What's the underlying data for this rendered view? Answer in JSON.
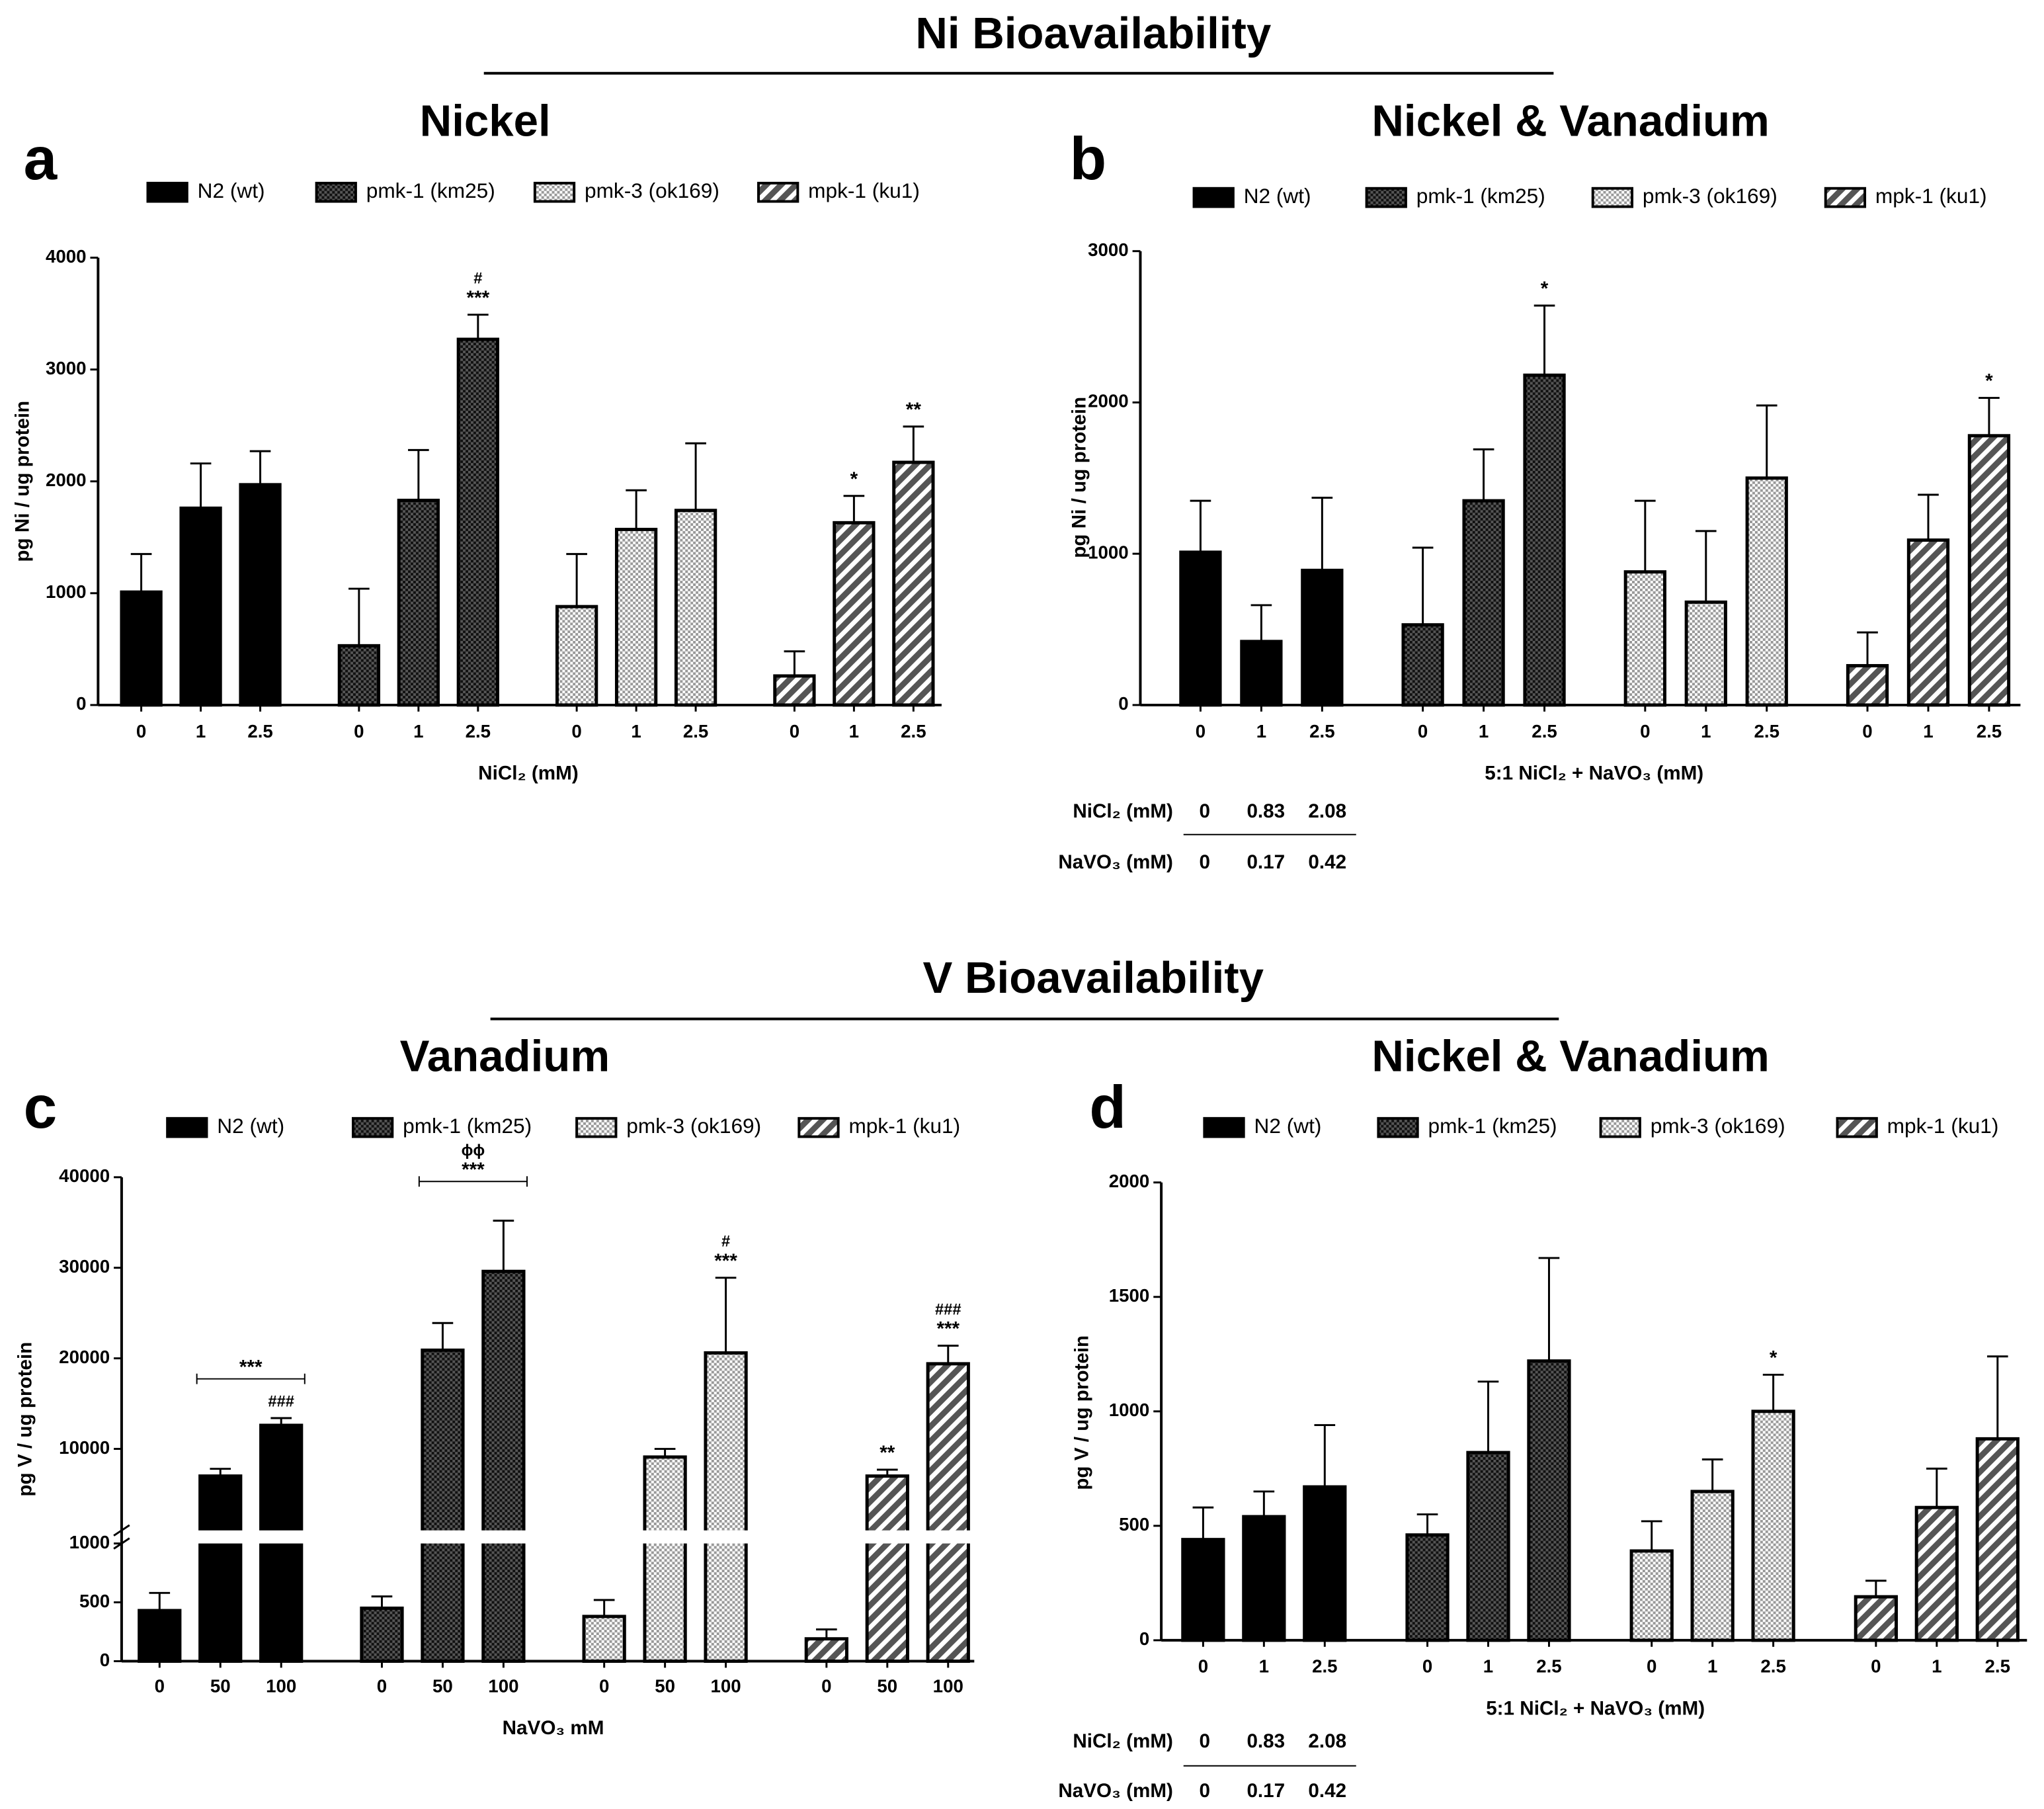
{
  "sections": [
    {
      "title": "Ni Bioavailability"
    },
    {
      "title": "V Bioavailability"
    }
  ],
  "chart_data": [
    {
      "type": "bar",
      "panel": "a",
      "title": "Nickel",
      "xlabel": "NiCl₂ (mM)",
      "ylabel": "pg Ni / ug protein",
      "categories": [
        "0",
        "1",
        "2.5"
      ],
      "ylim": [
        0,
        4000
      ],
      "yticks": [
        0,
        1000,
        2000,
        3000,
        4000
      ],
      "series": [
        {
          "name": "N2 (wt)",
          "color": "#000000",
          "pattern": "solid",
          "values": [
            1010,
            1760,
            1970
          ],
          "errors": [
            340,
            400,
            300
          ]
        },
        {
          "name": "pmk-1 (km25)",
          "color": "#333333",
          "pattern": "checker-dark",
          "values": [
            530,
            1830,
            3270
          ],
          "errors": [
            510,
            450,
            220
          ]
        },
        {
          "name": "pmk-3 (ok169)",
          "color": "#bbbbbb",
          "pattern": "checker-light",
          "values": [
            880,
            1570,
            1740
          ],
          "errors": [
            470,
            350,
            600
          ]
        },
        {
          "name": "mpk-1 (ku1)",
          "color": "#666666",
          "pattern": "diagonal",
          "values": [
            260,
            1630,
            2170
          ],
          "errors": [
            220,
            240,
            320
          ]
        }
      ],
      "annotations": [
        {
          "series": 1,
          "categories": [
            2
          ],
          "text": [
            "#",
            "***"
          ]
        },
        {
          "series": 3,
          "categories": [
            1
          ],
          "text": [
            "*"
          ]
        },
        {
          "series": 3,
          "categories": [
            2
          ],
          "text": [
            "**"
          ]
        }
      ]
    },
    {
      "type": "bar",
      "panel": "b",
      "title": "Nickel & Vanadium",
      "xlabel": "5:1 NiCl₂ + NaVO₃ (mM)",
      "ylabel": "pg Ni / ug protein",
      "categories": [
        "0",
        "1",
        "2.5"
      ],
      "ylim": [
        0,
        3000
      ],
      "yticks": [
        0,
        1000,
        2000,
        3000
      ],
      "series": [
        {
          "name": "N2 (wt)",
          "color": "#000000",
          "pattern": "solid",
          "values": [
            1010,
            420,
            890
          ],
          "errors": [
            340,
            240,
            480
          ]
        },
        {
          "name": "pmk-1 (km25)",
          "color": "#333333",
          "pattern": "checker-dark",
          "values": [
            530,
            1350,
            2180
          ],
          "errors": [
            510,
            340,
            460
          ]
        },
        {
          "name": "pmk-3 (ok169)",
          "color": "#bbbbbb",
          "pattern": "checker-light",
          "values": [
            880,
            680,
            1500
          ],
          "errors": [
            470,
            470,
            480
          ]
        },
        {
          "name": "mpk-1 (ku1)",
          "color": "#666666",
          "pattern": "diagonal",
          "values": [
            260,
            1090,
            1780
          ],
          "errors": [
            220,
            300,
            250
          ]
        }
      ],
      "annotations": [
        {
          "series": 1,
          "categories": [
            2
          ],
          "text": [
            "*"
          ]
        },
        {
          "series": 3,
          "categories": [
            2
          ],
          "text": [
            "*"
          ]
        }
      ],
      "table": {
        "rows": [
          {
            "label": "NiCl₂ (mM)",
            "values": [
              0,
              0.83,
              2.08
            ]
          },
          {
            "label": "NaVO₃  (mM)",
            "values": [
              0,
              0.17,
              0.42
            ]
          }
        ]
      }
    },
    {
      "type": "bar",
      "panel": "c",
      "title": "Vanadium",
      "xlabel": "NaVO₃ mM",
      "ylabel": "pg V / ug protein",
      "categories": [
        "0",
        "50",
        "100"
      ],
      "ylim": [
        0,
        40000
      ],
      "ybreak": 1000,
      "yticks": [
        0,
        500,
        1000,
        10000,
        20000,
        30000,
        40000
      ],
      "series": [
        {
          "name": "N2 (wt)",
          "color": "#000000",
          "pattern": "solid",
          "values": [
            430,
            7000,
            12600
          ],
          "errors": [
            150,
            800,
            800
          ]
        },
        {
          "name": "pmk-1 (km25)",
          "color": "#333333",
          "pattern": "checker-dark",
          "values": [
            450,
            20900,
            29600
          ],
          "errors": [
            100,
            3000,
            5600
          ]
        },
        {
          "name": "pmk-3 (ok169)",
          "color": "#bbbbbb",
          "pattern": "checker-light",
          "values": [
            380,
            9100,
            20600
          ],
          "errors": [
            140,
            900,
            8300
          ]
        },
        {
          "name": "mpk-1 (ku1)",
          "color": "#666666",
          "pattern": "diagonal",
          "values": [
            190,
            7000,
            19400
          ],
          "errors": [
            80,
            700,
            2000
          ]
        }
      ],
      "annotations": [
        {
          "series": 0,
          "categories": [
            1,
            2
          ],
          "text": [
            "***"
          ]
        },
        {
          "series": 0,
          "categories": [
            2
          ],
          "text": [
            "###"
          ]
        },
        {
          "series": 1,
          "categories": [
            1,
            2
          ],
          "text": [
            "ϕϕ",
            "***"
          ]
        },
        {
          "series": 2,
          "categories": [
            2
          ],
          "text": [
            "#",
            "***"
          ]
        },
        {
          "series": 3,
          "categories": [
            1
          ],
          "text": [
            "**"
          ]
        },
        {
          "series": 3,
          "categories": [
            2
          ],
          "text": [
            "###",
            "***"
          ]
        }
      ]
    },
    {
      "type": "bar",
      "panel": "d",
      "title": "Nickel & Vanadium",
      "xlabel": "5:1 NiCl₂ + NaVO₃ (mM)",
      "ylabel": "pg V / ug protein",
      "categories": [
        "0",
        "1",
        "2.5"
      ],
      "ylim": [
        0,
        2000
      ],
      "yticks": [
        0,
        500,
        1000,
        1500,
        2000
      ],
      "series": [
        {
          "name": "N2 (wt)",
          "color": "#000000",
          "pattern": "solid",
          "values": [
            440,
            540,
            670
          ],
          "errors": [
            140,
            110,
            270
          ]
        },
        {
          "name": "pmk-1 (km25)",
          "color": "#333333",
          "pattern": "checker-dark",
          "values": [
            460,
            820,
            1220
          ],
          "errors": [
            90,
            310,
            450
          ]
        },
        {
          "name": "pmk-3 (ok169)",
          "color": "#bbbbbb",
          "pattern": "checker-light",
          "values": [
            390,
            650,
            1000
          ],
          "errors": [
            130,
            140,
            160
          ]
        },
        {
          "name": "mpk-1 (ku1)",
          "color": "#666666",
          "pattern": "diagonal",
          "values": [
            190,
            580,
            880
          ],
          "errors": [
            70,
            170,
            360
          ]
        }
      ],
      "annotations": [
        {
          "series": 2,
          "categories": [
            2
          ],
          "text": [
            "*"
          ]
        }
      ],
      "table": {
        "rows": [
          {
            "label": "NiCl₂ (mM)",
            "values": [
              0,
              0.83,
              2.08
            ]
          },
          {
            "label": "NaVO₃  (mM)",
            "values": [
              0,
              0.17,
              0.42
            ]
          }
        ]
      }
    }
  ]
}
